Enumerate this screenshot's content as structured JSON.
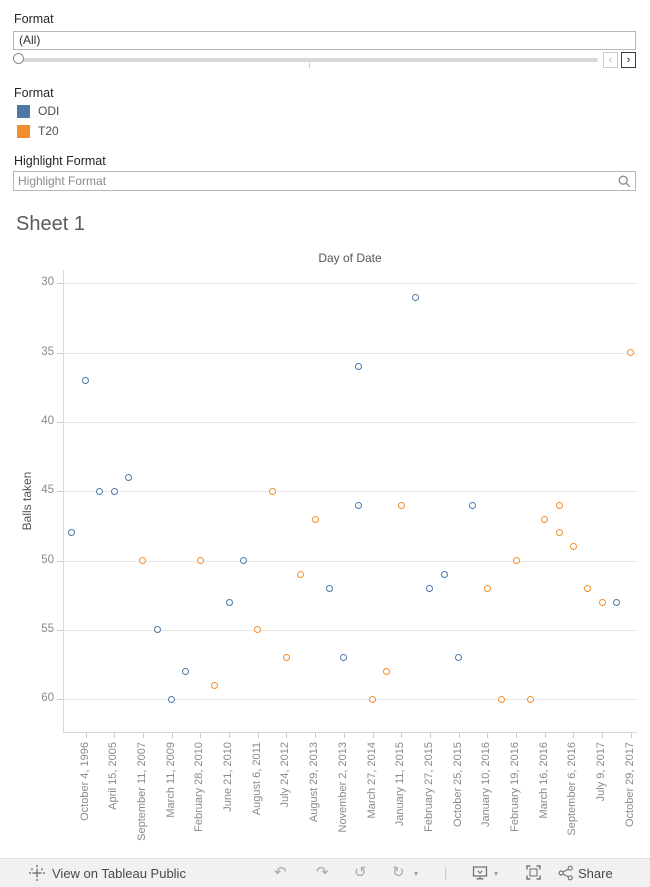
{
  "filters": {
    "format_filter": {
      "label": "Format",
      "value": "(All)"
    },
    "slider": {
      "prev_label": "‹",
      "next_label": "›"
    },
    "legend": {
      "title": "Format",
      "items": [
        {
          "label": "ODI",
          "color": "#4e79a7"
        },
        {
          "label": "T20",
          "color": "#f28e2b"
        }
      ]
    },
    "highlight": {
      "label": "Highlight Format",
      "placeholder": "Highlight Format",
      "icon": "search-icon"
    }
  },
  "sheet": {
    "title": "Sheet 1"
  },
  "chart_data": {
    "type": "scatter",
    "title": "Sheet 1",
    "x_axis_title": "Day of Date",
    "y_axis_label": "Balls taken",
    "y_ticks": [
      30,
      35,
      40,
      45,
      50,
      55,
      60
    ],
    "y_axis_reversed": true,
    "grid": true,
    "num_x_slots": 40,
    "x_labels_on_even_slots": true,
    "x_tick_labels": [
      "October 4, 1996",
      "April 15, 2005",
      "September 11, 2007",
      "March 11, 2009",
      "February 28, 2010",
      "June 21, 2010",
      "August 6, 2011",
      "July 24, 2012",
      "August 29, 2013",
      "November 2, 2013",
      "March 27, 2014",
      "January 11, 2015",
      "February 27, 2015",
      "October 25, 2015",
      "January 10, 2016",
      "February 19, 2016",
      "March 16, 2016",
      "September 6, 2016",
      "July 9, 2017",
      "October 29, 2017"
    ],
    "series": [
      {
        "name": "ODI",
        "color": "#4e79a7",
        "points": [
          {
            "slot": 1,
            "balls": 48
          },
          {
            "slot": 2,
            "balls": 37
          },
          {
            "slot": 3,
            "balls": 45
          },
          {
            "slot": 4,
            "balls": 45
          },
          {
            "slot": 5,
            "balls": 44
          },
          {
            "slot": 7,
            "balls": 55
          },
          {
            "slot": 8,
            "balls": 60
          },
          {
            "slot": 9,
            "balls": 58
          },
          {
            "slot": 12,
            "balls": 53
          },
          {
            "slot": 13,
            "balls": 50
          },
          {
            "slot": 19,
            "balls": 52
          },
          {
            "slot": 20,
            "balls": 57
          },
          {
            "slot": 21,
            "balls": 36
          },
          {
            "slot": 21,
            "balls": 46
          },
          {
            "slot": 25,
            "balls": 31
          },
          {
            "slot": 26,
            "balls": 52
          },
          {
            "slot": 27,
            "balls": 51
          },
          {
            "slot": 28,
            "balls": 57
          },
          {
            "slot": 29,
            "balls": 46
          },
          {
            "slot": 39,
            "balls": 53
          }
        ]
      },
      {
        "name": "T20",
        "color": "#f28e2b",
        "points": [
          {
            "slot": 6,
            "balls": 50
          },
          {
            "slot": 10,
            "balls": 50
          },
          {
            "slot": 11,
            "balls": 59
          },
          {
            "slot": 14,
            "balls": 55
          },
          {
            "slot": 15,
            "balls": 45
          },
          {
            "slot": 16,
            "balls": 57
          },
          {
            "slot": 17,
            "balls": 51
          },
          {
            "slot": 18,
            "balls": 47
          },
          {
            "slot": 22,
            "balls": 60
          },
          {
            "slot": 23,
            "balls": 58
          },
          {
            "slot": 24,
            "balls": 46
          },
          {
            "slot": 30,
            "balls": 52
          },
          {
            "slot": 31,
            "balls": 60
          },
          {
            "slot": 32,
            "balls": 50
          },
          {
            "slot": 33,
            "balls": 60
          },
          {
            "slot": 34,
            "balls": 47
          },
          {
            "slot": 35,
            "balls": 46
          },
          {
            "slot": 35,
            "balls": 48
          },
          {
            "slot": 36,
            "balls": 49
          },
          {
            "slot": 37,
            "balls": 52
          },
          {
            "slot": 38,
            "balls": 53
          },
          {
            "slot": 40,
            "balls": 35
          }
        ]
      }
    ]
  },
  "toolbar": {
    "view_label": "View on Tableau Public",
    "share_label": "Share",
    "icons": [
      "undo",
      "redo",
      "reset",
      "refresh",
      "download",
      "fullscreen",
      "share"
    ],
    "undo_glyph": "↶",
    "redo_glyph": "↷",
    "reset_glyph": "↺",
    "refresh_glyph": "↻",
    "caret_glyph": "▾",
    "separator_glyph": "|"
  }
}
